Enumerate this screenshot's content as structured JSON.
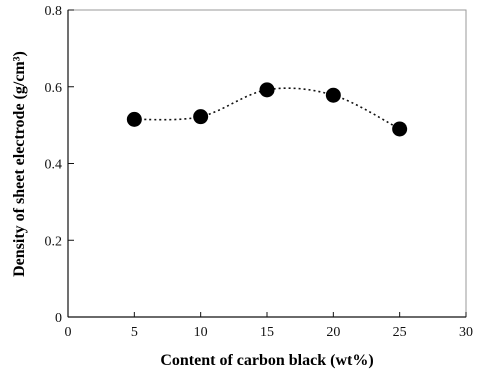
{
  "chart_data": {
    "type": "scatter",
    "title": "",
    "xlabel": "Content of carbon black (wt%)",
    "ylabel": "Density of sheet electrode (g/cm³)",
    "xlim": [
      0,
      30
    ],
    "ylim": [
      0,
      0.8
    ],
    "x_ticks": [
      0,
      5,
      10,
      15,
      20,
      25,
      30
    ],
    "y_ticks": [
      0,
      0.2,
      0.4,
      0.6,
      0.8
    ],
    "x_tick_labels": [
      "0",
      "5",
      "10",
      "15",
      "20",
      "25",
      "30"
    ],
    "y_tick_labels": [
      "0",
      "0.2",
      "0.4",
      "0.6",
      "0.8"
    ],
    "grid": false,
    "legend": "none",
    "series": [
      {
        "x": [
          5,
          10,
          15,
          20,
          25
        ],
        "y": [
          0.515,
          0.522,
          0.592,
          0.578,
          0.49
        ],
        "marker": "filled-circle",
        "connector": "dotted-smooth",
        "color": "#000000"
      }
    ]
  }
}
